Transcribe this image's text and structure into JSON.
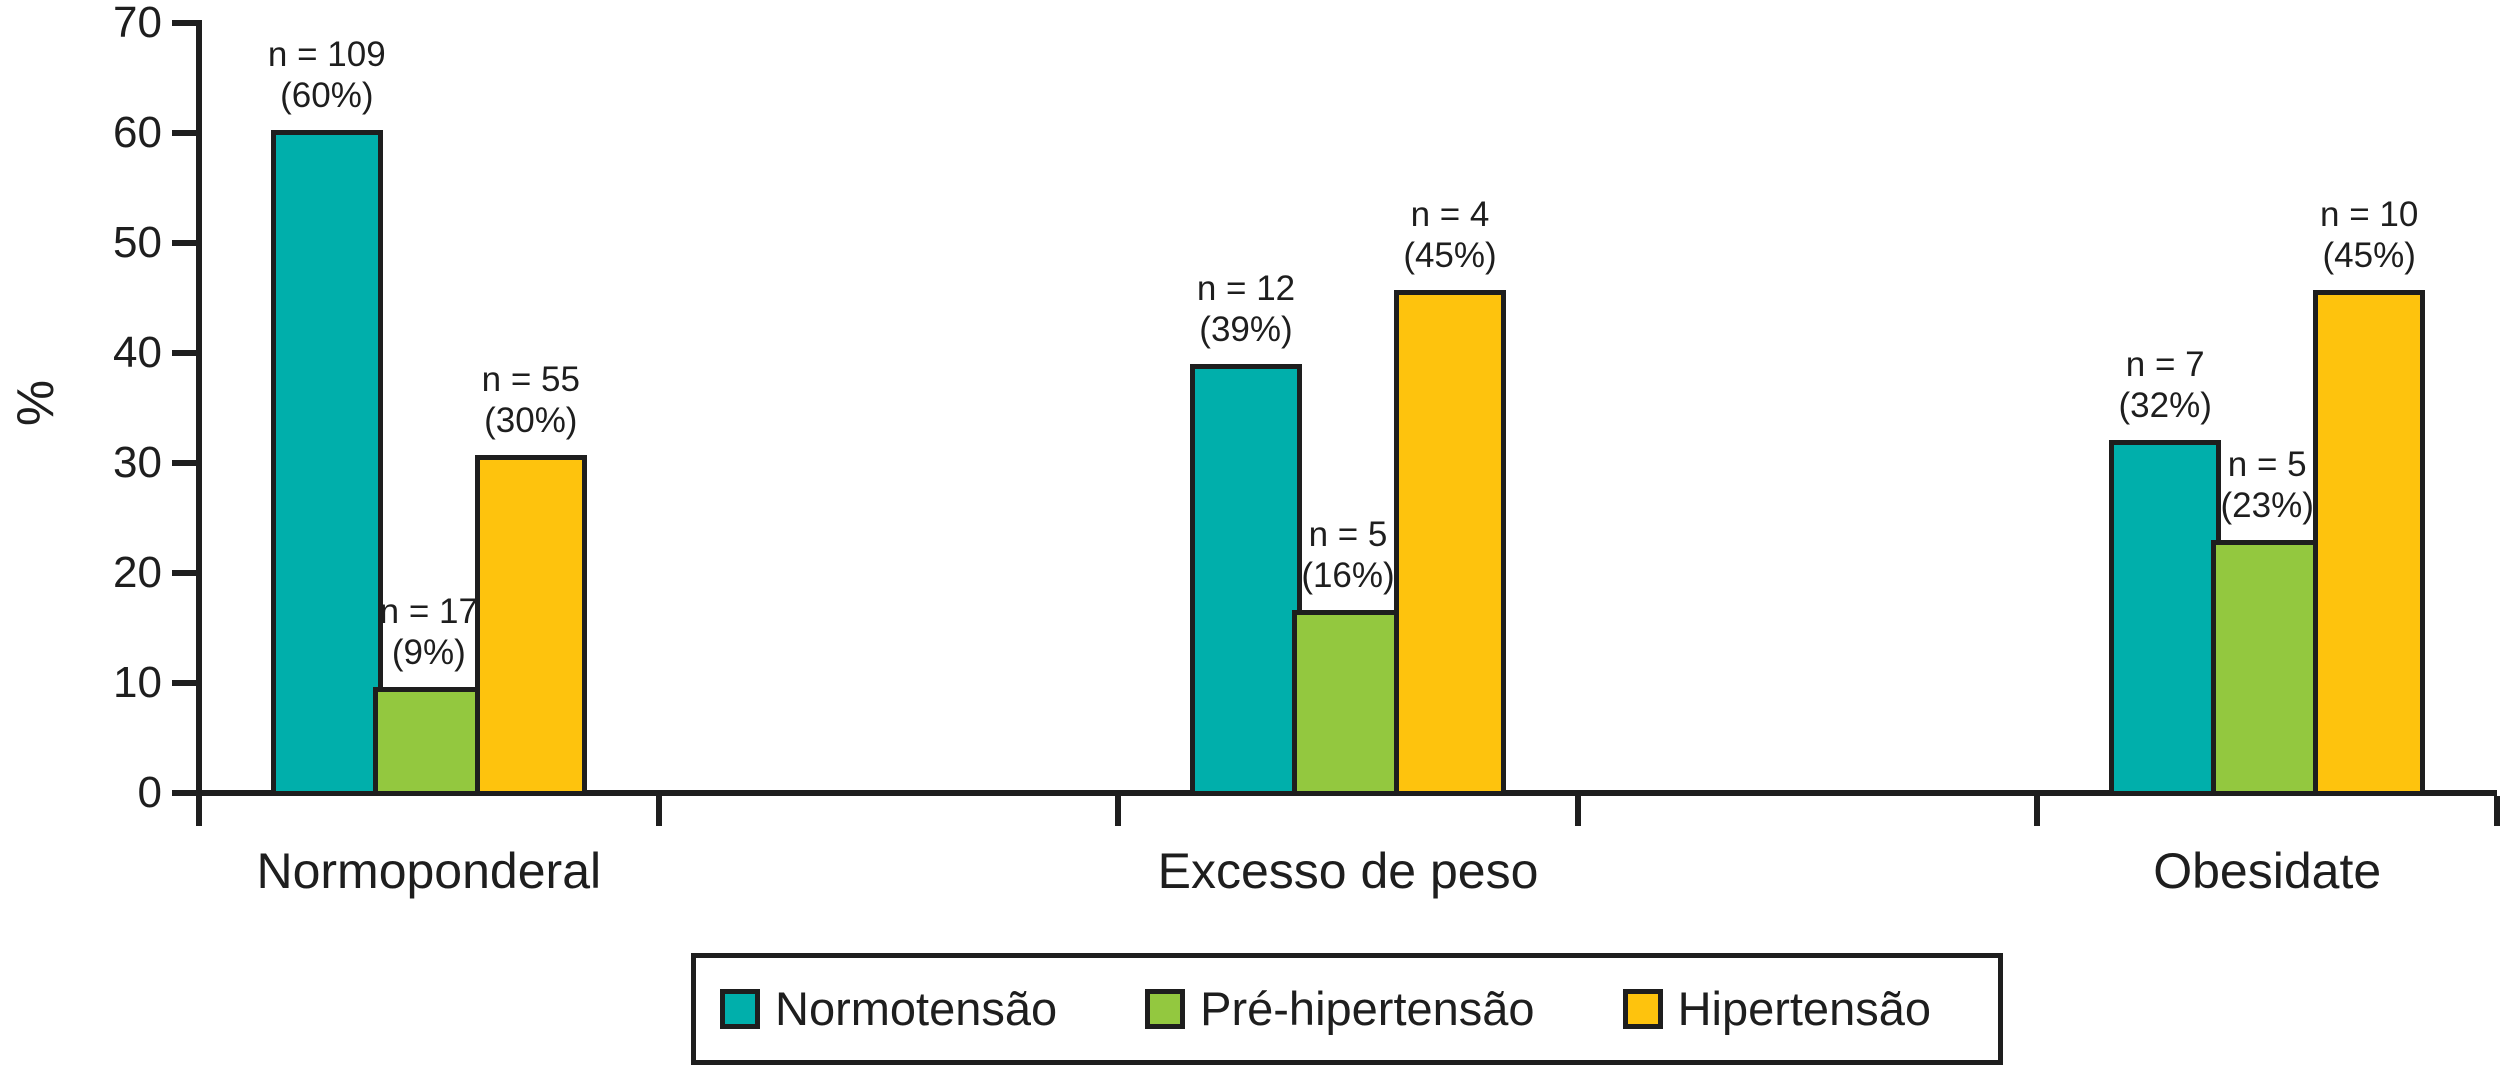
{
  "chart_data": {
    "type": "bar",
    "title": "",
    "xlabel": "",
    "ylabel": "%",
    "ylim": [
      0,
      70
    ],
    "yticks": [
      0,
      10,
      20,
      30,
      40,
      50,
      60,
      70
    ],
    "grid": false,
    "legend_position": "bottom",
    "categories": [
      "Normoponderal",
      "Excesso de peso",
      "Obesidate"
    ],
    "series": [
      {
        "name": "Normotensão",
        "color": "#00afab",
        "values": [
          60,
          38.7,
          31.8
        ],
        "annotations": [
          {
            "n": "n = 109",
            "pct": "(60%)"
          },
          {
            "n": "n = 12",
            "pct": "(39%)"
          },
          {
            "n": "n = 7",
            "pct": "(32%)"
          }
        ]
      },
      {
        "name": "Pré-hipertensão",
        "color": "#93c83f",
        "values": [
          9.4,
          16.4,
          22.7
        ],
        "annotations": [
          {
            "n": "n = 17",
            "pct": "(9%)"
          },
          {
            "n": "n = 5",
            "pct": "(16%)"
          },
          {
            "n": "n = 5",
            "pct": "(23%)"
          }
        ]
      },
      {
        "name": "Hipertensão",
        "color": "#fec30d",
        "values": [
          30.5,
          45.5,
          45.5
        ],
        "annotations": [
          {
            "n": "n = 55",
            "pct": "(30%)"
          },
          {
            "n": "n = 4",
            "pct": "(45%)"
          },
          {
            "n": "n = 10",
            "pct": "(45%)"
          }
        ]
      }
    ],
    "axis_color": "#1e1e1e"
  }
}
